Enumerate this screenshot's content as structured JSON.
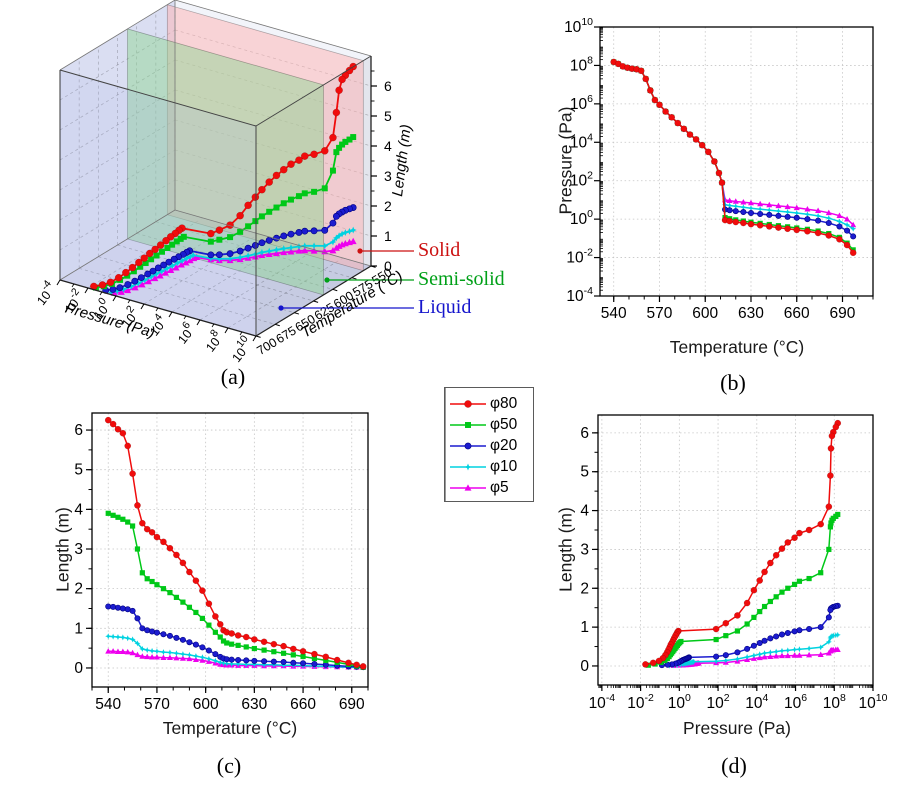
{
  "chart_data": {
    "description": "Four-panel figure: 3D pressure-temperature-length plot with phase regions, plus 2D projections",
    "series": [
      {
        "name": "φ80",
        "color": "#f00c0c",
        "marker": "circle",
        "T": [
          540,
          543,
          546,
          549,
          552,
          555,
          558,
          561,
          564,
          567,
          570,
          574,
          578,
          582,
          586,
          590,
          594,
          598,
          602,
          606,
          609,
          611,
          613,
          616,
          620,
          625,
          630,
          636,
          642,
          648,
          654,
          660,
          667,
          674,
          681,
          688,
          693,
          697
        ],
        "logP": [
          8.18,
          8.08,
          7.95,
          7.88,
          7.83,
          7.8,
          7.72,
          7.3,
          6.7,
          6.2,
          5.95,
          5.6,
          5.3,
          5.0,
          4.7,
          4.4,
          4.15,
          3.85,
          3.5,
          3.0,
          2.4,
          1.9,
          -0.05,
          -0.1,
          -0.15,
          -0.2,
          -0.26,
          -0.32,
          -0.38,
          -0.44,
          -0.5,
          -0.56,
          -0.63,
          -0.72,
          -0.85,
          -1.05,
          -1.35,
          -1.75
        ],
        "L": [
          6.25,
          6.15,
          6.02,
          5.92,
          5.6,
          4.9,
          4.1,
          3.65,
          3.5,
          3.42,
          3.3,
          3.18,
          3.02,
          2.85,
          2.65,
          2.42,
          2.2,
          1.95,
          1.62,
          1.3,
          1.1,
          0.95,
          0.9,
          0.87,
          0.82,
          0.78,
          0.72,
          0.66,
          0.6,
          0.55,
          0.48,
          0.42,
          0.35,
          0.28,
          0.2,
          0.13,
          0.08,
          0.04
        ]
      },
      {
        "name": "φ50",
        "color": "#00c818",
        "marker": "square",
        "T": [
          540,
          543,
          546,
          549,
          552,
          555,
          558,
          561,
          564,
          567,
          570,
          574,
          578,
          582,
          586,
          590,
          594,
          598,
          602,
          606,
          609,
          611,
          613,
          616,
          620,
          625,
          630,
          636,
          642,
          648,
          654,
          660,
          667,
          674,
          681,
          688,
          693,
          697
        ],
        "logP": [
          8.18,
          8.08,
          7.95,
          7.88,
          7.83,
          7.8,
          7.72,
          7.3,
          6.7,
          6.2,
          5.95,
          5.6,
          5.3,
          5.0,
          4.7,
          4.4,
          4.15,
          3.85,
          3.5,
          3.0,
          2.4,
          1.9,
          0.08,
          0.02,
          -0.04,
          -0.1,
          -0.16,
          -0.22,
          -0.28,
          -0.34,
          -0.4,
          -0.46,
          -0.53,
          -0.62,
          -0.75,
          -0.95,
          -1.25,
          -1.6
        ],
        "L": [
          3.9,
          3.85,
          3.8,
          3.75,
          3.68,
          3.58,
          3.0,
          2.4,
          2.25,
          2.18,
          2.1,
          2.0,
          1.9,
          1.78,
          1.66,
          1.53,
          1.4,
          1.25,
          1.08,
          0.9,
          0.78,
          0.68,
          0.63,
          0.6,
          0.57,
          0.53,
          0.49,
          0.45,
          0.41,
          0.37,
          0.33,
          0.29,
          0.24,
          0.19,
          0.14,
          0.09,
          0.05,
          0.02
        ]
      },
      {
        "name": "φ20",
        "color": "#1c1ccf",
        "marker": "circle-small",
        "T": [
          540,
          543,
          546,
          549,
          552,
          555,
          558,
          561,
          564,
          567,
          570,
          574,
          578,
          582,
          586,
          590,
          594,
          598,
          602,
          606,
          609,
          611,
          613,
          616,
          620,
          625,
          630,
          636,
          642,
          648,
          654,
          660,
          667,
          674,
          681,
          688,
          693,
          697
        ],
        "logP": [
          8.18,
          8.08,
          7.95,
          7.88,
          7.83,
          7.8,
          7.72,
          7.3,
          6.7,
          6.2,
          5.95,
          5.6,
          5.3,
          5.0,
          4.7,
          4.4,
          4.15,
          3.85,
          3.5,
          3.0,
          2.4,
          1.9,
          0.5,
          0.46,
          0.42,
          0.37,
          0.32,
          0.27,
          0.22,
          0.17,
          0.12,
          0.07,
          0.0,
          -0.08,
          -0.2,
          -0.38,
          -0.6,
          -0.9
        ],
        "L": [
          1.55,
          1.54,
          1.52,
          1.5,
          1.48,
          1.44,
          1.25,
          1.0,
          0.95,
          0.92,
          0.89,
          0.85,
          0.81,
          0.76,
          0.71,
          0.65,
          0.59,
          0.52,
          0.44,
          0.35,
          0.28,
          0.24,
          0.22,
          0.21,
          0.2,
          0.19,
          0.18,
          0.17,
          0.16,
          0.15,
          0.13,
          0.12,
          0.1,
          0.08,
          0.06,
          0.04,
          0.03,
          0.02
        ]
      },
      {
        "name": "φ10",
        "color": "#00d2e0",
        "marker": "star",
        "T": [
          540,
          543,
          546,
          549,
          552,
          555,
          558,
          561,
          564,
          567,
          570,
          574,
          578,
          582,
          586,
          590,
          594,
          598,
          602,
          606,
          609,
          611,
          613,
          616,
          620,
          625,
          630,
          636,
          642,
          648,
          654,
          660,
          667,
          674,
          681,
          688,
          693,
          697
        ],
        "logP": [
          8.18,
          8.08,
          7.95,
          7.88,
          7.83,
          7.8,
          7.72,
          7.3,
          6.7,
          6.2,
          5.95,
          5.6,
          5.3,
          5.0,
          4.7,
          4.4,
          4.15,
          3.85,
          3.5,
          3.0,
          2.4,
          1.9,
          0.75,
          0.71,
          0.67,
          0.62,
          0.57,
          0.52,
          0.47,
          0.42,
          0.37,
          0.32,
          0.25,
          0.17,
          0.05,
          -0.12,
          -0.3,
          -0.5
        ],
        "L": [
          0.8,
          0.79,
          0.78,
          0.77,
          0.75,
          0.72,
          0.62,
          0.48,
          0.45,
          0.43,
          0.42,
          0.4,
          0.39,
          0.37,
          0.35,
          0.33,
          0.3,
          0.27,
          0.23,
          0.18,
          0.14,
          0.12,
          0.11,
          0.1,
          0.1,
          0.09,
          0.09,
          0.08,
          0.08,
          0.07,
          0.07,
          0.06,
          0.05,
          0.04,
          0.03,
          0.02,
          0.015,
          0.01
        ]
      },
      {
        "name": "φ5",
        "color": "#ee00ee",
        "marker": "triangle",
        "T": [
          540,
          543,
          546,
          549,
          552,
          555,
          558,
          561,
          564,
          567,
          570,
          574,
          578,
          582,
          586,
          590,
          594,
          598,
          602,
          606,
          609,
          611,
          613,
          616,
          620,
          625,
          630,
          636,
          642,
          648,
          654,
          660,
          667,
          674,
          681,
          688,
          693,
          697
        ],
        "logP": [
          8.18,
          8.08,
          7.95,
          7.88,
          7.83,
          7.8,
          7.72,
          7.3,
          6.7,
          6.2,
          5.95,
          5.6,
          5.3,
          5.0,
          4.7,
          4.4,
          4.15,
          3.85,
          3.5,
          3.0,
          2.4,
          1.9,
          1.0,
          0.96,
          0.92,
          0.88,
          0.84,
          0.79,
          0.74,
          0.69,
          0.64,
          0.59,
          0.52,
          0.44,
          0.33,
          0.18,
          0.0,
          -0.3
        ],
        "L": [
          0.42,
          0.42,
          0.41,
          0.41,
          0.4,
          0.38,
          0.33,
          0.29,
          0.28,
          0.27,
          0.27,
          0.26,
          0.26,
          0.25,
          0.24,
          0.23,
          0.21,
          0.19,
          0.16,
          0.12,
          0.09,
          0.08,
          0.07,
          0.07,
          0.06,
          0.06,
          0.06,
          0.05,
          0.05,
          0.05,
          0.04,
          0.04,
          0.035,
          0.03,
          0.025,
          0.02,
          0.015,
          0.01
        ]
      }
    ],
    "panels": [
      {
        "id": "a",
        "type": "scatter3d",
        "label": "(a)",
        "x_axis": {
          "title": "Pressure (Pa)",
          "tick_exponents": [
            -4,
            -2,
            0,
            2,
            4,
            6,
            8,
            10
          ]
        },
        "y_axis": {
          "title": "Temperature (°C)",
          "ticks": [
            550,
            575,
            600,
            625,
            650,
            675,
            700
          ]
        },
        "z_axis": {
          "title": "Length (m)",
          "ticks": [
            0,
            1,
            2,
            3,
            4,
            5,
            6
          ]
        },
        "walls": [
          {
            "temperature": 560,
            "color": "#ffb0b0"
          },
          {
            "temperature": 612,
            "color": "#8fd693"
          }
        ],
        "annotations": [
          {
            "text": "Solid",
            "color": "#cc1111"
          },
          {
            "text": "Semi-solid",
            "color": "#00a018"
          },
          {
            "text": "Liquid",
            "color": "#1515cc"
          }
        ]
      },
      {
        "id": "b",
        "type": "line",
        "label": "(b)",
        "xlabel": "Temperature (°C)",
        "ylabel": "Pressure (Pa)",
        "xticks": [
          540,
          570,
          600,
          630,
          660,
          690
        ],
        "xlim": [
          531,
          710
        ],
        "xminor": 10,
        "ylog": true,
        "ytick_exponents": [
          -4,
          -2,
          0,
          2,
          4,
          6,
          8,
          10
        ],
        "ylim_exponents": [
          -4,
          10
        ],
        "x_key": "T",
        "y_key": "logP"
      },
      {
        "id": "c",
        "type": "line",
        "label": "(c)",
        "xlabel": "Temperature (°C)",
        "ylabel": "Length (m)",
        "xticks": [
          540,
          570,
          600,
          630,
          660,
          690
        ],
        "xlim": [
          530,
          700
        ],
        "xminor": 10,
        "yticks": [
          0,
          1,
          2,
          3,
          4,
          5,
          6
        ],
        "ylim": [
          -0.48,
          6.43
        ],
        "yminor": 0.5,
        "x_key": "T",
        "y_key": "L"
      },
      {
        "id": "d",
        "type": "line",
        "label": "(d)",
        "xlabel": "Pressure (Pa)",
        "ylabel": "Length (m)",
        "xlog": true,
        "xtick_exponents": [
          -4,
          -2,
          0,
          2,
          4,
          6,
          8,
          10
        ],
        "xlim_exponents": [
          -4.2,
          10
        ],
        "yticks": [
          0,
          1,
          2,
          3,
          4,
          5,
          6
        ],
        "ylim": [
          -0.49,
          6.46
        ],
        "yminor": 0.5,
        "x_key": "logP",
        "y_key": "L"
      }
    ]
  }
}
